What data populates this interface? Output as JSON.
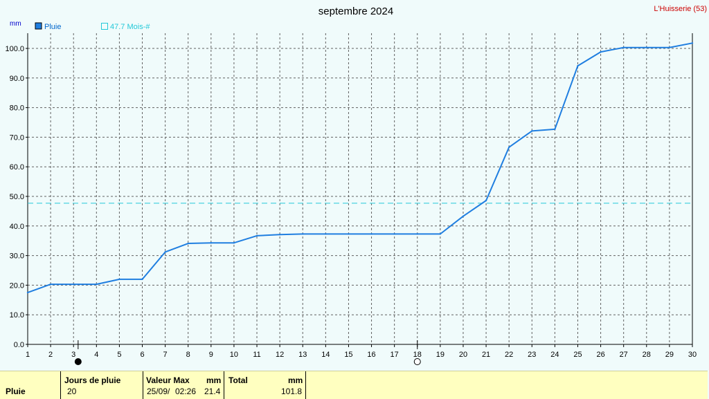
{
  "header": {
    "title": "septembre 2024",
    "station": "L'Huisserie (53)",
    "unit": "mm"
  },
  "legend": {
    "series_label": "Pluie",
    "reference_label": "47.7 Mois-#"
  },
  "colors": {
    "series": "#1f7ee0",
    "reference": "#22c8d8",
    "grid": "#606060",
    "footer_bg": "#ffffc0"
  },
  "chart_data": {
    "type": "line",
    "x": [
      1,
      2,
      3,
      4,
      5,
      6,
      7,
      8,
      9,
      10,
      11,
      12,
      13,
      14,
      15,
      16,
      17,
      18,
      19,
      20,
      21,
      22,
      23,
      24,
      25,
      26,
      27,
      28,
      29,
      30
    ],
    "xlim": [
      1,
      30
    ],
    "ylim": [
      0,
      100
    ],
    "yticks": [
      "0.0",
      "10.0",
      "20.0",
      "30.0",
      "40.0",
      "50.0",
      "60.0",
      "70.0",
      "80.0",
      "90.0",
      "100.0"
    ],
    "grid": true,
    "legend_position": "top-left",
    "series": [
      {
        "name": "Pluie",
        "values": [
          17.5,
          20.3,
          20.3,
          20.3,
          22.0,
          22.0,
          31.2,
          34.1,
          34.3,
          34.3,
          36.7,
          37.1,
          37.3,
          37.3,
          37.3,
          37.3,
          37.3,
          37.3,
          37.3,
          43.3,
          48.6,
          66.6,
          72.1,
          72.7,
          94.1,
          98.8,
          100.3,
          100.3,
          100.3,
          101.8
        ]
      }
    ],
    "reference_line": {
      "value": 47.7
    },
    "moon_phases": [
      {
        "day": 3.2,
        "phase": "new"
      },
      {
        "day": 18.0,
        "phase": "full"
      }
    ]
  },
  "footer": {
    "row_label": "Pluie",
    "days_header": "Jours de pluie",
    "days_value": "20",
    "max_header": "Valeur Max",
    "max_unit": "mm",
    "max_date": "25/09/",
    "max_time": "02:26",
    "max_value": "21.4",
    "total_header": "Total",
    "total_unit": "mm",
    "total_value": "101.8"
  }
}
